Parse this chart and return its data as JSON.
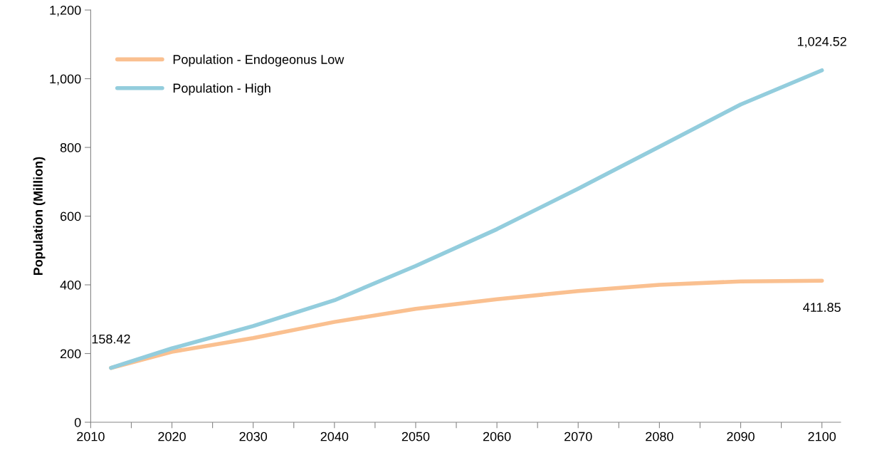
{
  "chart_data": {
    "type": "line",
    "ylabel": "Population (Million)",
    "x": [
      2012.5,
      2020,
      2030,
      2040,
      2050,
      2060,
      2070,
      2080,
      2090,
      2100
    ],
    "series": [
      {
        "name": "Population - Endogeonus Low",
        "color": "#fac090",
        "values": [
          158,
          205,
          245,
          292,
          330,
          358,
          382,
          400,
          410,
          411.85
        ],
        "value_labels": [
          null,
          null,
          null,
          null,
          null,
          null,
          null,
          null,
          null,
          "411.85"
        ]
      },
      {
        "name": "Population - High",
        "color": "#93cddd",
        "values": [
          158.42,
          215,
          280,
          355,
          455,
          562,
          680,
          802,
          925,
          1024.52
        ],
        "value_labels": [
          "158.42",
          null,
          null,
          null,
          null,
          null,
          null,
          null,
          null,
          "1,024.52"
        ]
      }
    ],
    "xlim": [
      2010,
      2102.3
    ],
    "xticks": [
      2010,
      {
        "value": 2015,
        "label": null
      },
      2020,
      {
        "value": 2025,
        "label": null
      },
      2030,
      {
        "value": 2035,
        "label": null
      },
      2040,
      {
        "value": 2045,
        "label": null
      },
      2050,
      {
        "value": 2055,
        "label": null
      },
      2060,
      {
        "value": 2065,
        "label": null
      },
      2070,
      {
        "value": 2075,
        "label": null
      },
      2080,
      {
        "value": 2085,
        "label": null
      },
      2090,
      {
        "value": 2095,
        "label": null
      },
      2100
    ],
    "ylim": [
      0,
      1200
    ],
    "yticks": [
      0,
      200,
      400,
      600,
      800,
      {
        "value": 1000,
        "label": "1,000"
      },
      {
        "value": 1200,
        "label": "1,200"
      }
    ],
    "legend": "top left",
    "grid": false,
    "marker": "none",
    "line_style": "solid"
  }
}
